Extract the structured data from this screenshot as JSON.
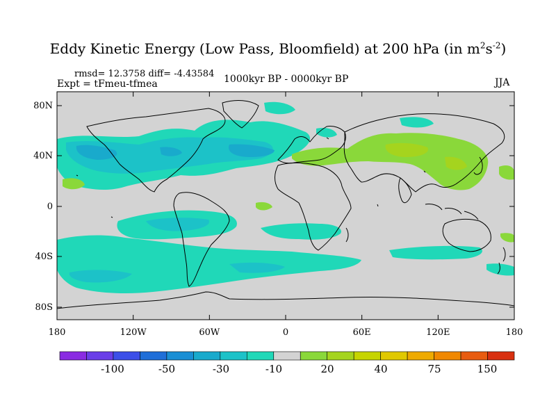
{
  "title": {
    "main": "Eddy Kinetic Energy (Low Pass, Bloomfield) at 200 hPa (in m",
    "sup1": "2",
    "mid": "s",
    "sup2": "-2",
    "close": ")"
  },
  "stats": "rmsd= 12.3758 diff= -4.43584",
  "expt": "Expt = tFmeu-tfmea",
  "period": "1000kyr BP - 0000kyr BP",
  "season": "JJA",
  "axes": {
    "y_labels": [
      "80N",
      "40N",
      "0",
      "40S",
      "80S"
    ],
    "x_labels": [
      "180",
      "120W",
      "60W",
      "0",
      "60E",
      "120E",
      "180"
    ]
  },
  "colorbar": {
    "colors": [
      "#8a2be2",
      "#6a3ee8",
      "#3c4fe8",
      "#1f6fd8",
      "#1a8fd4",
      "#19aacc",
      "#1cc2c8",
      "#20d8b8",
      "#d3d3d3",
      "#8ad83a",
      "#a5d41e",
      "#c6d400",
      "#e0c800",
      "#eeaa00",
      "#f08800",
      "#e85c10",
      "#d83010"
    ],
    "labels": [
      "-100",
      "-50",
      "-30",
      "-10",
      "20",
      "40",
      "75",
      "150"
    ]
  },
  "legend_colors": {
    "ocean_background": "#d3d3d3",
    "cyan": "#20d8b8",
    "light_blue": "#1cc2c8",
    "blue": "#19aacc",
    "green": "#8ad83a",
    "yellow_green": "#a5d41e"
  }
}
